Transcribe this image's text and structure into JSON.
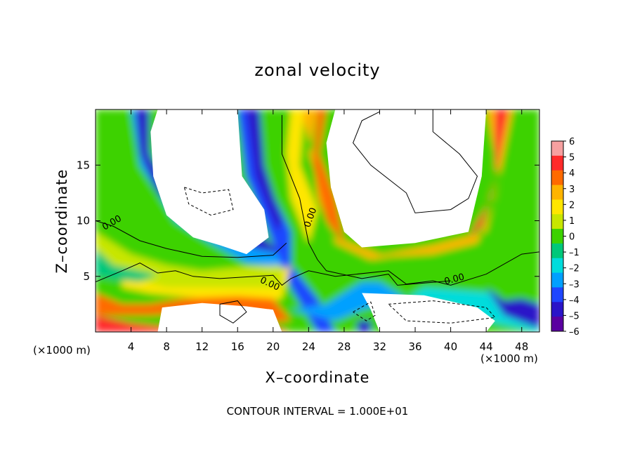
{
  "chart_data": {
    "type": "heatmap",
    "title": "zonal velocity",
    "xlabel": "X–coordinate",
    "ylabel": "Z–coordinate",
    "x_unit_label": "(×1000 m)",
    "y_unit_label": "(×1000 m)",
    "xlim": [
      0,
      50
    ],
    "ylim": [
      0,
      20
    ],
    "x_ticks": [
      4,
      8,
      12,
      16,
      20,
      24,
      28,
      32,
      36,
      40,
      44,
      48
    ],
    "y_ticks": [
      5,
      10,
      15
    ],
    "colorbar": {
      "min": -6,
      "max": 6,
      "tick_labels": [
        "6",
        "5",
        "4",
        "3",
        "2",
        "1",
        "0",
        "–1",
        "–2",
        "–3",
        "–4",
        "–5",
        "–6"
      ],
      "colors": [
        "#f6a0a0",
        "#ff2a2a",
        "#ff6a00",
        "#ffb400",
        "#ffe600",
        "#c8e600",
        "#3cd200",
        "#00c87a",
        "#00dcdc",
        "#00a0ff",
        "#1e46ff",
        "#2a14c8",
        "#5a00a0"
      ]
    },
    "contour_labels": [
      "0.00",
      "0.00",
      "0.00",
      "0.00"
    ],
    "footer": "CONTOUR INTERVAL = 1.000E+01"
  }
}
